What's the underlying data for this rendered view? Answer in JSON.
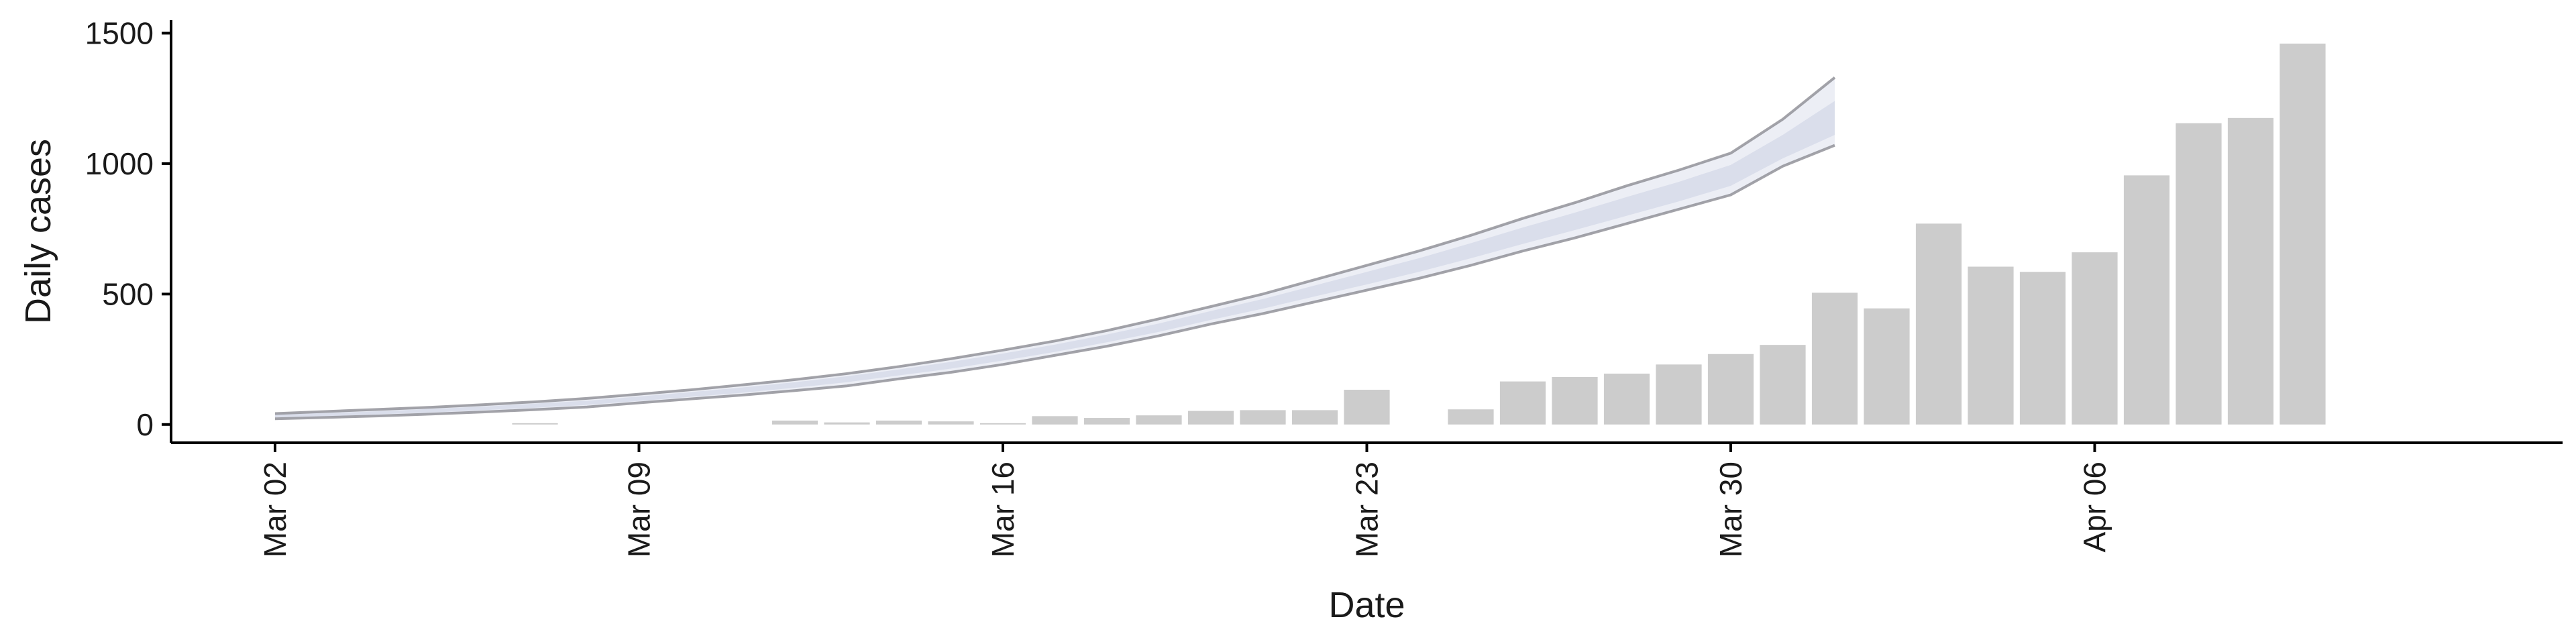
{
  "chart_data": {
    "type": "bar",
    "xlabel": "Date",
    "ylabel": "Daily cases",
    "xlim": [
      "2020-02-29",
      "2020-04-15"
    ],
    "ylim": [
      -70,
      1550
    ],
    "x_ticks": [
      {
        "date": "2020-03-02",
        "label": "Mar 02"
      },
      {
        "date": "2020-03-09",
        "label": "Mar 09"
      },
      {
        "date": "2020-03-16",
        "label": "Mar 16"
      },
      {
        "date": "2020-03-23",
        "label": "Mar 23"
      },
      {
        "date": "2020-03-30",
        "label": "Mar 30"
      },
      {
        "date": "2020-04-06",
        "label": "Apr 06"
      }
    ],
    "y_ticks": [
      0,
      500,
      1000,
      1500
    ],
    "bars": {
      "dates": [
        "2020-03-07",
        "2020-03-12",
        "2020-03-13",
        "2020-03-14",
        "2020-03-15",
        "2020-03-16",
        "2020-03-17",
        "2020-03-18",
        "2020-03-19",
        "2020-03-20",
        "2020-03-21",
        "2020-03-22",
        "2020-03-23",
        "2020-03-25",
        "2020-03-26",
        "2020-03-27",
        "2020-03-28",
        "2020-03-29",
        "2020-03-30",
        "2020-03-31",
        "2020-04-01",
        "2020-04-02",
        "2020-04-03",
        "2020-04-04",
        "2020-04-05",
        "2020-04-06",
        "2020-04-07",
        "2020-04-08",
        "2020-04-09",
        "2020-04-10"
      ],
      "values": [
        5,
        15,
        8,
        15,
        12,
        5,
        32,
        25,
        35,
        52,
        55,
        55,
        133,
        58,
        165,
        182,
        195,
        230,
        270,
        305,
        505,
        445,
        770,
        605,
        585,
        660,
        955,
        1155,
        1175,
        1460
      ]
    },
    "band": {
      "dates": [
        "2020-03-02",
        "2020-03-03",
        "2020-03-04",
        "2020-03-05",
        "2020-03-06",
        "2020-03-07",
        "2020-03-08",
        "2020-03-09",
        "2020-03-10",
        "2020-03-11",
        "2020-03-12",
        "2020-03-13",
        "2020-03-14",
        "2020-03-15",
        "2020-03-16",
        "2020-03-17",
        "2020-03-18",
        "2020-03-19",
        "2020-03-20",
        "2020-03-21",
        "2020-03-22",
        "2020-03-23",
        "2020-03-24",
        "2020-03-25",
        "2020-03-26",
        "2020-03-27",
        "2020-03-28",
        "2020-03-29",
        "2020-03-30",
        "2020-03-31",
        "2020-04-01"
      ],
      "median": [
        33,
        38,
        45,
        53,
        62,
        72,
        83,
        98,
        115,
        132,
        152,
        175,
        200,
        228,
        260,
        292,
        330,
        370,
        418,
        463,
        512,
        560,
        610,
        665,
        720,
        775,
        830,
        885,
        950,
        1050,
        1150
      ],
      "lower_90": [
        22,
        27,
        33,
        40,
        48,
        57,
        67,
        83,
        98,
        113,
        130,
        148,
        175,
        200,
        230,
        265,
        300,
        340,
        385,
        425,
        470,
        515,
        560,
        610,
        665,
        715,
        770,
        825,
        880,
        990,
        1070
      ],
      "upper_90": [
        42,
        50,
        58,
        66,
        76,
        87,
        100,
        116,
        133,
        152,
        172,
        195,
        222,
        252,
        285,
        320,
        360,
        405,
        452,
        500,
        555,
        610,
        665,
        725,
        790,
        850,
        915,
        975,
        1040,
        1170,
        1330
      ],
      "lower_50": [
        28,
        32,
        39,
        46,
        55,
        64,
        75,
        90,
        106,
        122,
        141,
        162,
        188,
        214,
        245,
        278,
        315,
        355,
        401,
        444,
        491,
        537,
        585,
        637,
        692,
        745,
        800,
        855,
        915,
        1020,
        1110
      ],
      "upper_50": [
        38,
        44,
        51,
        60,
        69,
        80,
        91,
        107,
        124,
        142,
        162,
        185,
        211,
        240,
        272,
        306,
        345,
        387,
        435,
        481,
        533,
        585,
        637,
        695,
        755,
        812,
        872,
        930,
        995,
        1110,
        1240
      ]
    },
    "colors": {
      "bars": "#cccccc",
      "band_outer": "#eceef5",
      "band_inner": "#dadeeb",
      "band_edge": "#8c8c94",
      "axis": "#000000"
    }
  }
}
